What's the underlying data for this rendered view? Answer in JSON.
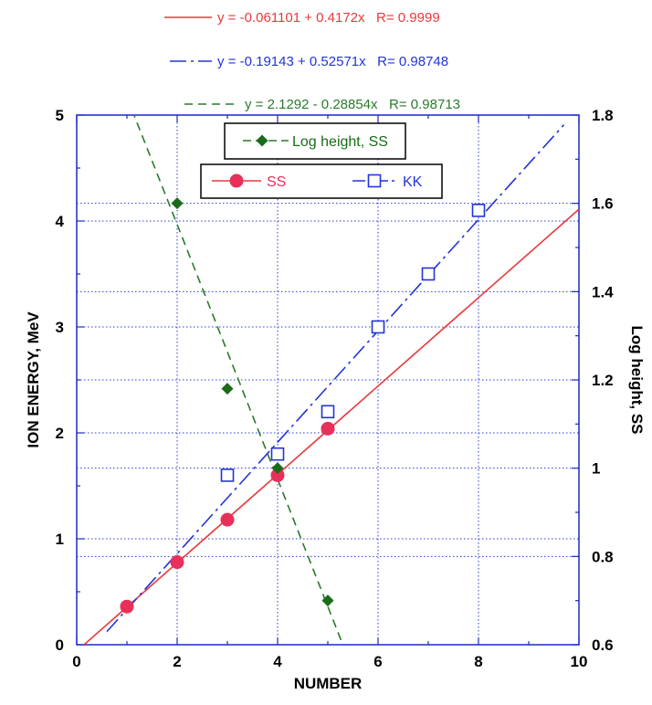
{
  "chart_data": {
    "type": "scatter",
    "title": "",
    "xlabel": "NUMBER",
    "ylabel": "ION ENERGY, MeV",
    "y2label": "Log height, SS",
    "xlim": [
      0,
      10
    ],
    "ylim": [
      0,
      5
    ],
    "y2lim": [
      0.6,
      1.8
    ],
    "xticks": [
      "0",
      "2",
      "4",
      "6",
      "8",
      "10"
    ],
    "yticks": [
      "0",
      "1",
      "2",
      "3",
      "4",
      "5"
    ],
    "y2ticks": [
      "0.6",
      "0.8",
      "1",
      "1.2",
      "1.4",
      "1.6",
      "1.8"
    ],
    "grid": true,
    "series": [
      {
        "name": "SS",
        "axis": "left",
        "marker": "filled-circle",
        "color": "#e8305a",
        "x": [
          1,
          2,
          3,
          4,
          5
        ],
        "y": [
          0.36,
          0.78,
          1.18,
          1.6,
          2.04
        ],
        "fit": {
          "label": "y = -0.061101 + 0.4172x   R= 0.9999",
          "intercept": -0.061101,
          "slope": 0.4172,
          "style": "solid",
          "color": "#e8393c",
          "range": [
            0,
            10
          ]
        }
      },
      {
        "name": "KK",
        "axis": "left",
        "marker": "open-square",
        "color": "#2333d8",
        "x": [
          3,
          4,
          5,
          6,
          7,
          8
        ],
        "y": [
          1.6,
          1.8,
          2.2,
          3.0,
          3.5,
          4.1
        ],
        "fit": {
          "label": "y = -0.19143 + 0.52571x   R= 0.98748",
          "intercept": -0.19143,
          "slope": 0.52571,
          "style": "dash-dot",
          "color": "#2333d8",
          "range": [
            0.6,
            9.7
          ]
        }
      },
      {
        "name": "Log height, SS",
        "axis": "right",
        "marker": "filled-diamond",
        "color": "#1a6b1a",
        "x": [
          2,
          3,
          4,
          5
        ],
        "y": [
          1.6,
          1.18,
          1.0,
          0.7
        ],
        "fit": {
          "label": "y = 2.1292 - 0.28854x   R= 0.98713",
          "intercept": 2.1292,
          "slope": -0.28854,
          "style": "dashed",
          "color": "#2a7a2a",
          "range": [
            1.0,
            5.3
          ]
        }
      }
    ],
    "legends": [
      {
        "entries": [
          "Log height, SS"
        ],
        "placement": "top-center"
      },
      {
        "entries": [
          "SS",
          "KK"
        ],
        "placement": "top-center"
      }
    ]
  }
}
